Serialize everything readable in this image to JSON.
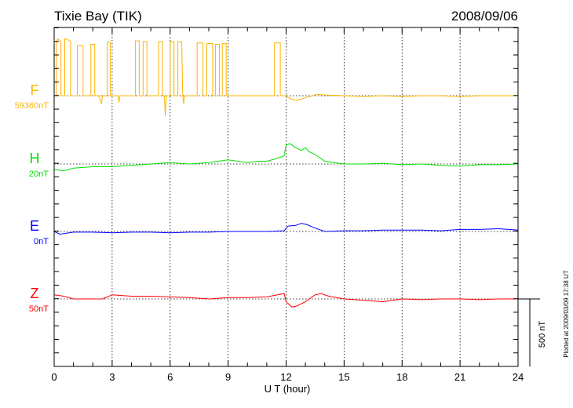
{
  "chart_data": {
    "type": "line",
    "title": "Tixie Bay (TIK)",
    "date": "2008/09/06",
    "xlabel": "U T (hour)",
    "xlim": [
      0,
      24
    ],
    "xticks": [
      "0",
      "3",
      "6",
      "9",
      "12",
      "15",
      "18",
      "21",
      "24"
    ],
    "grid": "vertical dotted at 3-hour ticks; dotted baselines per component",
    "scale_bar_label": "500 nT",
    "footnote": "Plotted at 2009/03/09 17:38 UT",
    "series": [
      {
        "name": "F",
        "baseline_label": "59360nT",
        "color": "#ffb400",
        "points": [
          [
            0,
            0
          ],
          [
            0.1,
            0
          ],
          [
            0.1,
            400
          ],
          [
            0.2,
            420
          ],
          [
            0.35,
            400
          ],
          [
            0.35,
            0
          ],
          [
            0.55,
            0
          ],
          [
            0.55,
            420
          ],
          [
            0.7,
            415
          ],
          [
            0.85,
            400
          ],
          [
            0.85,
            0
          ],
          [
            1.2,
            0
          ],
          [
            1.2,
            370
          ],
          [
            1.5,
            370
          ],
          [
            1.5,
            0
          ],
          [
            1.9,
            0
          ],
          [
            1.9,
            380
          ],
          [
            2.1,
            380
          ],
          [
            2.1,
            0
          ],
          [
            2.3,
            0
          ],
          [
            2.45,
            -60
          ],
          [
            2.5,
            0
          ],
          [
            2.75,
            0
          ],
          [
            2.75,
            395
          ],
          [
            2.9,
            395
          ],
          [
            2.9,
            0
          ],
          [
            3.3,
            0
          ],
          [
            3.35,
            -50
          ],
          [
            3.4,
            0
          ],
          [
            4.2,
            0
          ],
          [
            4.2,
            405
          ],
          [
            4.4,
            405
          ],
          [
            4.4,
            0
          ],
          [
            4.6,
            0
          ],
          [
            4.6,
            400
          ],
          [
            4.8,
            400
          ],
          [
            4.8,
            0
          ],
          [
            5.4,
            0
          ],
          [
            5.4,
            400
          ],
          [
            5.6,
            400
          ],
          [
            5.6,
            0
          ],
          [
            5.7,
            0
          ],
          [
            5.75,
            -150
          ],
          [
            5.8,
            0
          ],
          [
            6.0,
            0
          ],
          [
            6.0,
            400
          ],
          [
            6.2,
            400
          ],
          [
            6.2,
            0
          ],
          [
            6.4,
            0
          ],
          [
            6.4,
            400
          ],
          [
            6.6,
            400
          ],
          [
            6.65,
            0
          ],
          [
            6.7,
            -60
          ],
          [
            6.75,
            0
          ],
          [
            7.4,
            0
          ],
          [
            7.4,
            390
          ],
          [
            7.7,
            390
          ],
          [
            7.7,
            0
          ],
          [
            7.9,
            0
          ],
          [
            7.9,
            385
          ],
          [
            8.2,
            385
          ],
          [
            8.2,
            0
          ],
          [
            8.35,
            0
          ],
          [
            8.35,
            380
          ],
          [
            8.55,
            380
          ],
          [
            8.55,
            0
          ],
          [
            8.7,
            0
          ],
          [
            8.7,
            385
          ],
          [
            8.9,
            385
          ],
          [
            8.9,
            0
          ],
          [
            11.4,
            0
          ],
          [
            11.4,
            390
          ],
          [
            11.7,
            390
          ],
          [
            11.7,
            0
          ],
          [
            12.0,
            0
          ],
          [
            12.2,
            -20
          ],
          [
            12.5,
            -35
          ],
          [
            12.8,
            -25
          ],
          [
            13.1,
            -10
          ],
          [
            13.6,
            10
          ],
          [
            14.0,
            5
          ],
          [
            15,
            0
          ],
          [
            16,
            -5
          ],
          [
            17,
            0
          ],
          [
            18,
            -5
          ],
          [
            19,
            0
          ],
          [
            20,
            0
          ],
          [
            21,
            -5
          ],
          [
            22,
            0
          ],
          [
            23,
            0
          ],
          [
            24,
            0
          ]
        ]
      },
      {
        "name": "H",
        "baseline_label": "20nT",
        "color": "#00e000",
        "points": [
          [
            0,
            -40
          ],
          [
            0.5,
            -50
          ],
          [
            1,
            -30
          ],
          [
            2,
            -20
          ],
          [
            3,
            -20
          ],
          [
            4,
            -10
          ],
          [
            5,
            0
          ],
          [
            6,
            10
          ],
          [
            7,
            0
          ],
          [
            8,
            10
          ],
          [
            9,
            30
          ],
          [
            10,
            10
          ],
          [
            10.5,
            20
          ],
          [
            11,
            20
          ],
          [
            11.5,
            40
          ],
          [
            11.9,
            60
          ],
          [
            12.0,
            140
          ],
          [
            12.2,
            150
          ],
          [
            12.5,
            120
          ],
          [
            12.8,
            100
          ],
          [
            13.0,
            120
          ],
          [
            13.2,
            90
          ],
          [
            13.5,
            70
          ],
          [
            14,
            20
          ],
          [
            14.5,
            10
          ],
          [
            15,
            0
          ],
          [
            16,
            0
          ],
          [
            17,
            5
          ],
          [
            18,
            -5
          ],
          [
            19,
            0
          ],
          [
            20,
            -10
          ],
          [
            21,
            -15
          ],
          [
            22,
            -5
          ],
          [
            23,
            -5
          ],
          [
            24,
            0
          ]
        ]
      },
      {
        "name": "E",
        "baseline_label": "0nT",
        "color": "#0000ff",
        "points": [
          [
            0,
            0
          ],
          [
            0.3,
            -20
          ],
          [
            1,
            -5
          ],
          [
            2,
            -5
          ],
          [
            3,
            -10
          ],
          [
            4,
            -5
          ],
          [
            5,
            -5
          ],
          [
            6,
            -10
          ],
          [
            7,
            -5
          ],
          [
            8,
            -5
          ],
          [
            9,
            0
          ],
          [
            10,
            0
          ],
          [
            11,
            0
          ],
          [
            11.9,
            5
          ],
          [
            12.1,
            40
          ],
          [
            12.5,
            45
          ],
          [
            12.8,
            60
          ],
          [
            13.1,
            50
          ],
          [
            13.4,
            30
          ],
          [
            14,
            0
          ],
          [
            15,
            5
          ],
          [
            16,
            5
          ],
          [
            17,
            10
          ],
          [
            18,
            10
          ],
          [
            19,
            10
          ],
          [
            20,
            5
          ],
          [
            21,
            15
          ],
          [
            22,
            15
          ],
          [
            23,
            20
          ],
          [
            24,
            10
          ]
        ]
      },
      {
        "name": "Z",
        "baseline_label": "50nT",
        "color": "#ff0000",
        "points": [
          [
            0,
            30
          ],
          [
            0.5,
            20
          ],
          [
            1,
            0
          ],
          [
            2,
            0
          ],
          [
            2.5,
            0
          ],
          [
            3,
            30
          ],
          [
            4,
            20
          ],
          [
            5,
            20
          ],
          [
            6,
            15
          ],
          [
            7,
            10
          ],
          [
            8,
            0
          ],
          [
            9,
            10
          ],
          [
            10,
            10
          ],
          [
            11,
            15
          ],
          [
            11.9,
            40
          ],
          [
            12.0,
            -20
          ],
          [
            12.3,
            -60
          ],
          [
            12.6,
            -50
          ],
          [
            13.0,
            -20
          ],
          [
            13.5,
            30
          ],
          [
            13.8,
            40
          ],
          [
            14.2,
            20
          ],
          [
            15,
            0
          ],
          [
            16,
            -10
          ],
          [
            17,
            -20
          ],
          [
            18,
            0
          ],
          [
            19,
            -5
          ],
          [
            20,
            0
          ],
          [
            21,
            0
          ],
          [
            22,
            -5
          ],
          [
            23,
            0
          ],
          [
            24,
            0
          ]
        ]
      }
    ]
  }
}
